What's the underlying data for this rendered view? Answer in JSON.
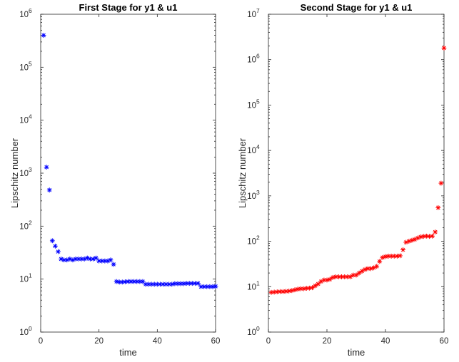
{
  "chart_data": [
    {
      "type": "scatter",
      "title": "First Stage for y1 & u1",
      "xlabel": "time",
      "ylabel": "Lipschitz number",
      "xlim": [
        0,
        60
      ],
      "ylim": [
        1,
        1000000
      ],
      "yscale": "log",
      "xticks": [
        "0",
        "20",
        "40",
        "60"
      ],
      "ytick_exponents": [
        "0",
        "1",
        "2",
        "3",
        "4",
        "5",
        "6"
      ],
      "ytick_base": "10",
      "marker": "*",
      "color": "#0000ff",
      "grid": false,
      "x": [
        1,
        2,
        3,
        4,
        5,
        6,
        7,
        8,
        9,
        10,
        11,
        12,
        13,
        14,
        15,
        16,
        17,
        18,
        19,
        20,
        21,
        22,
        23,
        24,
        25,
        26,
        27,
        28,
        29,
        30,
        31,
        32,
        33,
        34,
        35,
        36,
        37,
        38,
        39,
        40,
        41,
        42,
        43,
        44,
        45,
        46,
        47,
        48,
        49,
        50,
        51,
        52,
        53,
        54,
        55,
        56,
        57,
        58,
        59,
        60
      ],
      "y": [
        400000,
        1300,
        480,
        53,
        42,
        33,
        24,
        23,
        23,
        24,
        23,
        24,
        24,
        24,
        24,
        25,
        24,
        24,
        25,
        22,
        22,
        22,
        22,
        23,
        19,
        9,
        8.8,
        8.8,
        8.9,
        9,
        9,
        9,
        9,
        9,
        9,
        8,
        8,
        8,
        8,
        8,
        8,
        8,
        8,
        8,
        8,
        8.2,
        8.2,
        8.2,
        8.2,
        8.3,
        8.3,
        8.3,
        8.3,
        8.3,
        7.2,
        7.2,
        7.2,
        7.2,
        7.2,
        7.3
      ]
    },
    {
      "type": "scatter",
      "title": "Second Stage for y1 & u1",
      "xlabel": "time",
      "ylabel": "Lipschitz number",
      "xlim": [
        0,
        60
      ],
      "ylim": [
        1,
        10000000
      ],
      "yscale": "log",
      "xticks": [
        "0",
        "20",
        "40",
        "60"
      ],
      "ytick_exponents": [
        "0",
        "1",
        "2",
        "3",
        "4",
        "5",
        "6",
        "7"
      ],
      "ytick_base": "10",
      "marker": "*",
      "color": "#ff0000",
      "grid": false,
      "x": [
        1,
        2,
        3,
        4,
        5,
        6,
        7,
        8,
        9,
        10,
        11,
        12,
        13,
        14,
        15,
        16,
        17,
        18,
        19,
        20,
        21,
        22,
        23,
        24,
        25,
        26,
        27,
        28,
        29,
        30,
        31,
        32,
        33,
        34,
        35,
        36,
        37,
        38,
        39,
        40,
        41,
        42,
        43,
        44,
        45,
        46,
        47,
        48,
        49,
        50,
        51,
        52,
        53,
        54,
        55,
        56,
        57,
        58,
        59,
        60
      ],
      "y": [
        7.5,
        7.6,
        7.7,
        7.8,
        7.8,
        7.9,
        8,
        8.2,
        8.5,
        8.8,
        9,
        9,
        9.2,
        9.3,
        9.5,
        10.5,
        11.5,
        13,
        14,
        14,
        14.5,
        16,
        16.5,
        16.5,
        16.5,
        16.5,
        16.5,
        16.5,
        18,
        18,
        20,
        22,
        24,
        25,
        25,
        26,
        28,
        36,
        44,
        46,
        47,
        47,
        47,
        47,
        48,
        65,
        95,
        100,
        105,
        110,
        118,
        125,
        128,
        130,
        128,
        130,
        160,
        550,
        1900,
        1800000
      ]
    }
  ]
}
